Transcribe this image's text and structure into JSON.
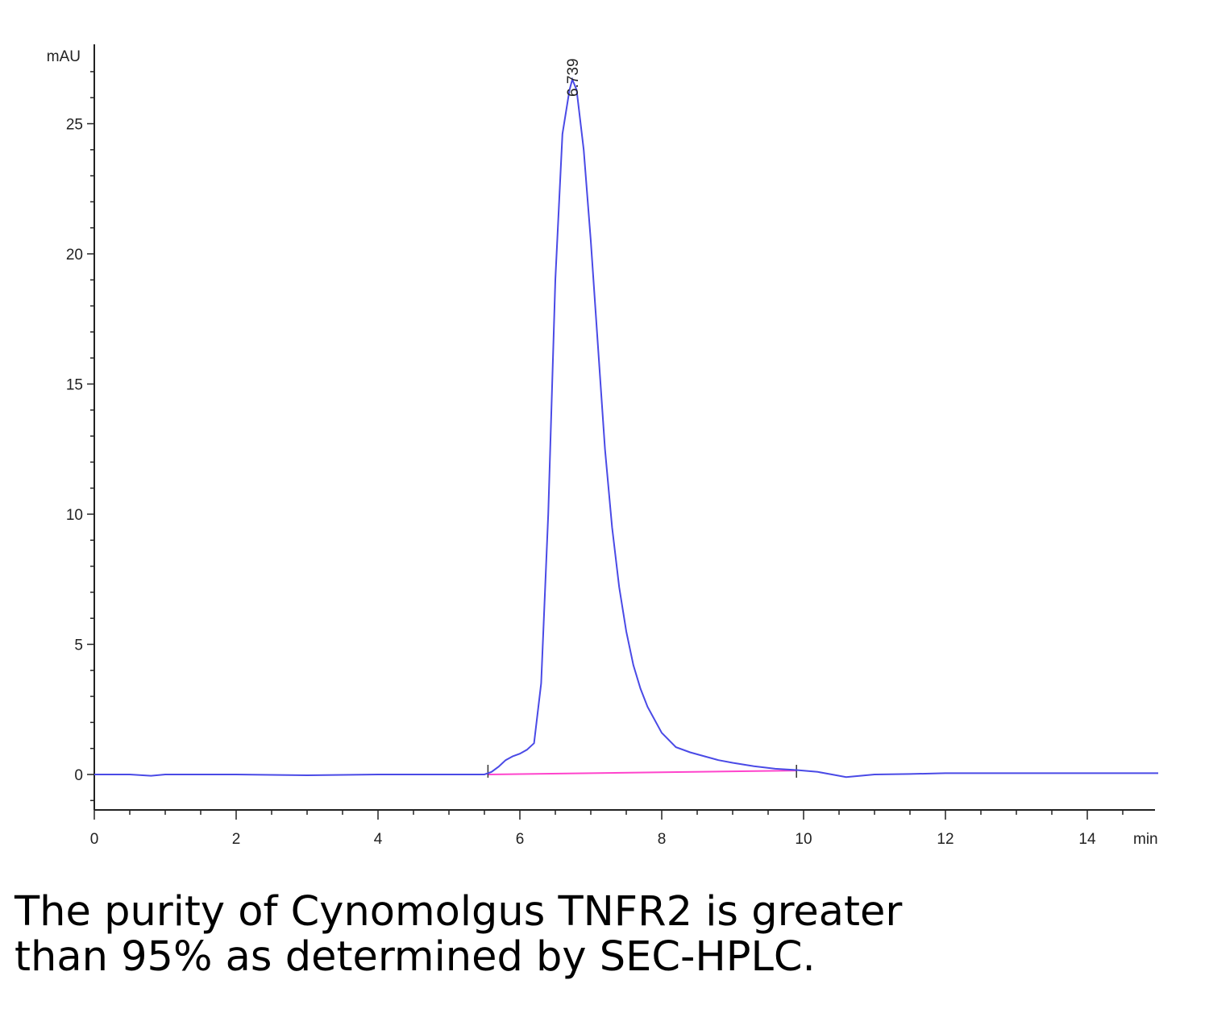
{
  "chart_data": {
    "type": "line",
    "title": "",
    "xlabel": "",
    "ylabel": "",
    "x_unit": "min",
    "y_unit": "mAU",
    "xlim": [
      0,
      15
    ],
    "ylim": [
      -1.4,
      28
    ],
    "x_ticks": [
      0,
      2,
      4,
      6,
      8,
      10,
      12,
      14
    ],
    "y_ticks": [
      0,
      5,
      10,
      15,
      20,
      25
    ],
    "grid": false,
    "colors": {
      "trace": "#4a4ae6",
      "baseline": "#ff44cc",
      "axis": "#222222"
    },
    "series": [
      {
        "x": [
          0,
          0.5,
          0.8,
          1.0,
          2.0,
          3.0,
          4.0,
          5.0,
          5.5,
          5.6,
          5.7,
          5.8,
          5.9,
          6.0,
          6.1,
          6.2,
          6.3,
          6.4,
          6.5,
          6.6,
          6.7,
          6.74,
          6.8,
          6.9,
          7.0,
          7.1,
          7.2,
          7.3,
          7.4,
          7.5,
          7.6,
          7.7,
          7.8,
          8.0,
          8.2,
          8.4,
          8.6,
          8.8,
          9.0,
          9.3,
          9.6,
          9.9,
          10.2,
          10.4,
          10.6,
          10.8,
          11.0,
          11.5,
          12.0,
          13.0,
          14.0,
          15.0
        ],
        "y": [
          0.0,
          0.0,
          -0.05,
          0.0,
          0.0,
          -0.03,
          0.0,
          0.0,
          0.0,
          0.1,
          0.3,
          0.55,
          0.7,
          0.8,
          0.95,
          1.2,
          3.5,
          10.0,
          19.0,
          24.6,
          26.3,
          26.7,
          26.3,
          24.0,
          20.5,
          16.5,
          12.5,
          9.5,
          7.2,
          5.5,
          4.2,
          3.3,
          2.6,
          1.6,
          1.05,
          0.85,
          0.7,
          0.55,
          0.45,
          0.32,
          0.22,
          0.17,
          0.1,
          0.0,
          -0.1,
          -0.05,
          0.0,
          0.02,
          0.05,
          0.05,
          0.05,
          0.05
        ]
      }
    ],
    "baseline": {
      "x": [
        5.55,
        9.9
      ],
      "y": [
        0.0,
        0.15
      ]
    },
    "integration_marks": [
      5.55,
      9.9
    ],
    "annotations": [
      {
        "text": "6.739",
        "x": 6.739
      }
    ]
  },
  "caption": {
    "line1": "The purity of Cynomolgus TNFR2 is greater",
    "line2": "than 95% as determined by SEC-HPLC."
  }
}
